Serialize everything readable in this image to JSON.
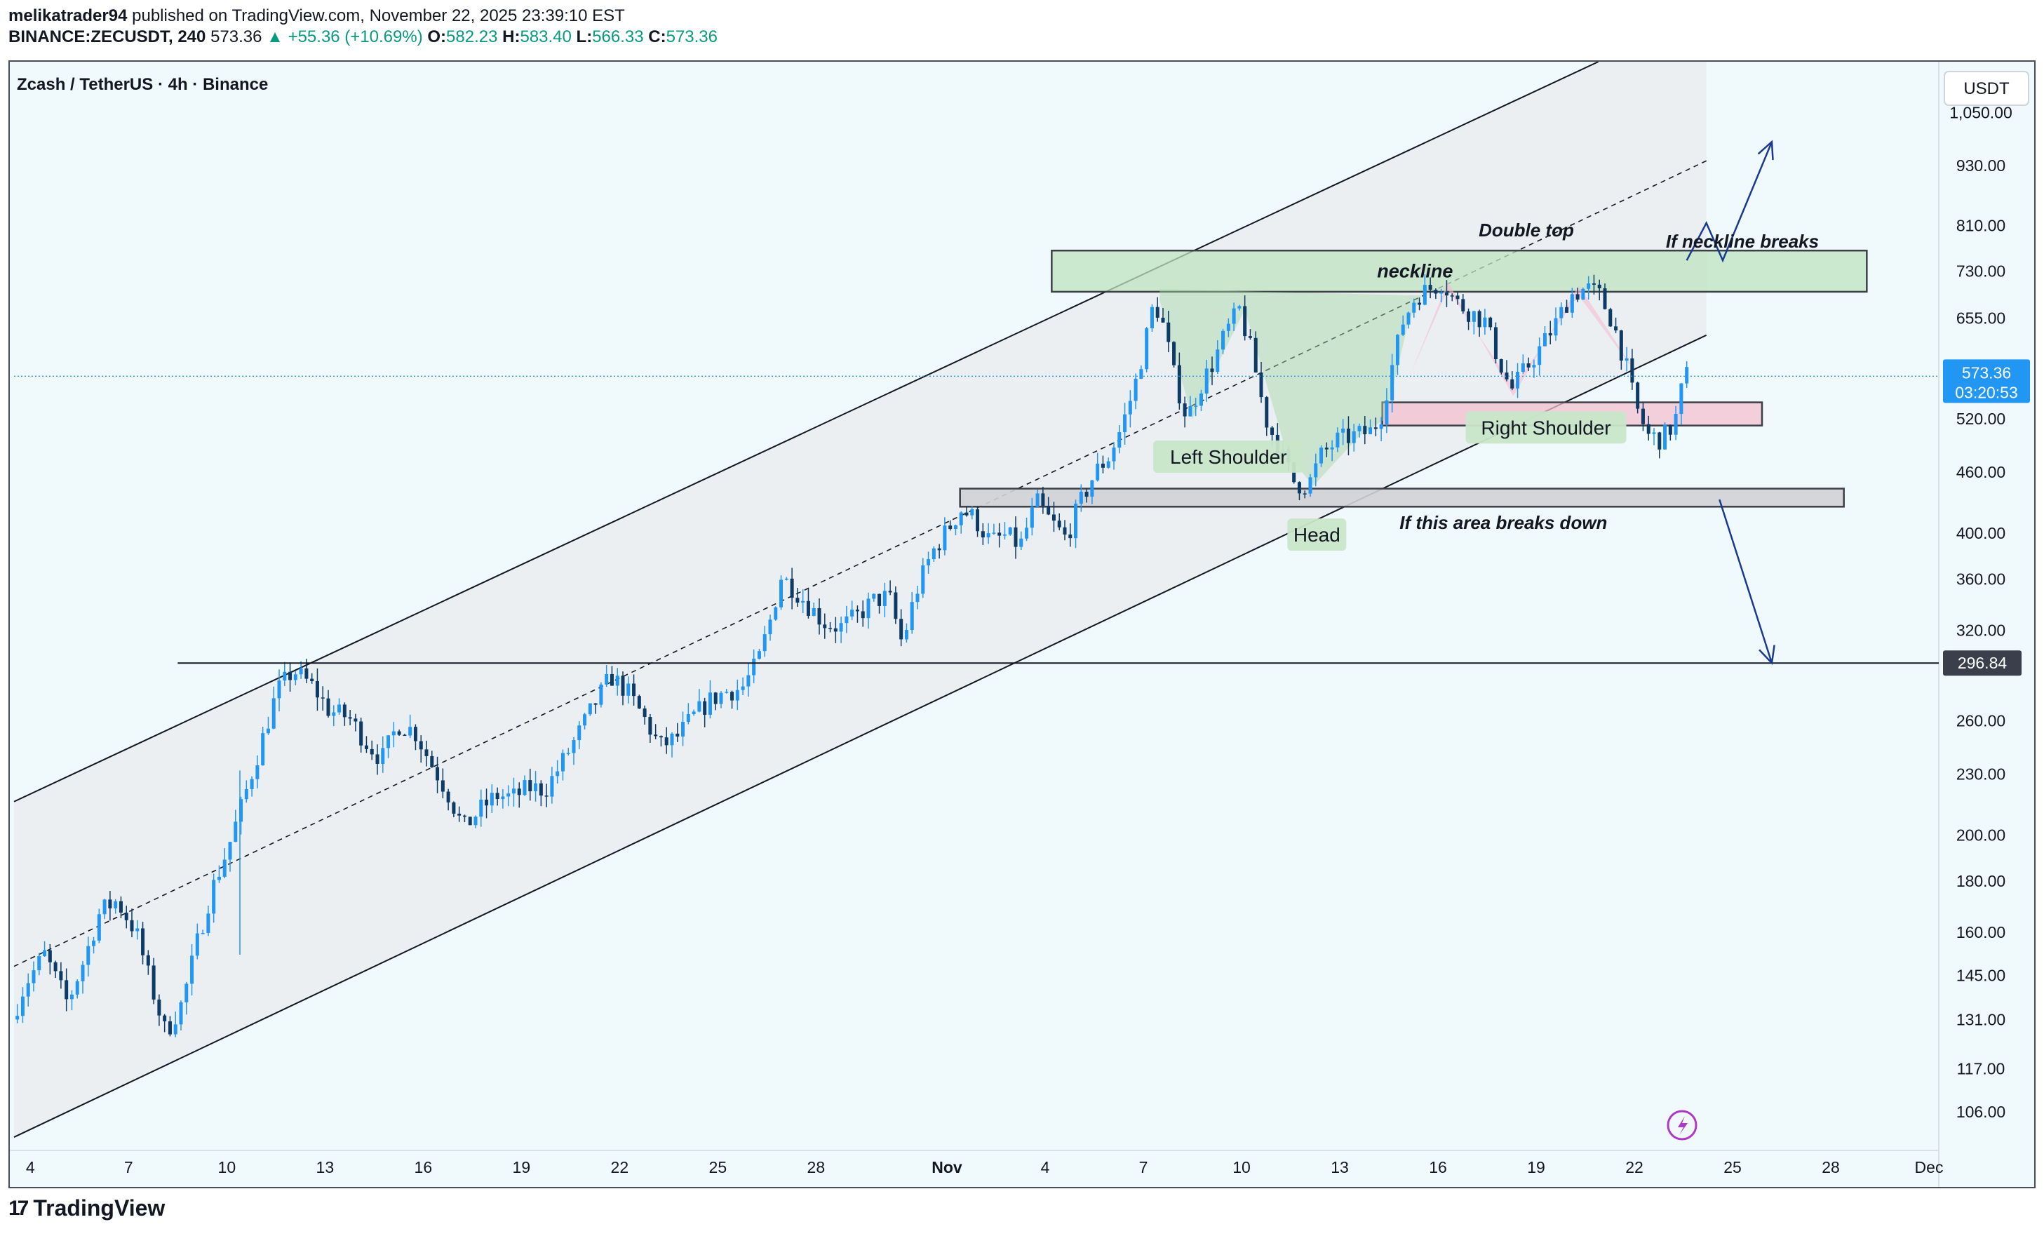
{
  "header": {
    "author": "melikatrader94",
    "published_text": "published on TradingView.com, November 22, 2025 23:39:10 EST",
    "symbol": "BINANCE:ZECUSDT, 240",
    "last": "573.36",
    "change": "▲ +55.36 (+10.69%)",
    "o_label": "O:",
    "o": "582.23",
    "h_label": "H:",
    "h": "583.40",
    "l_label": "L:",
    "l": "566.33",
    "c_label": "C:",
    "c": "573.36"
  },
  "chart_title": "Zcash / TetherUS · 4h · Binance",
  "currency_button": "USDT",
  "footer": {
    "brand": "TradingView",
    "mark": "17"
  },
  "colors": {
    "up": "#089981",
    "candle": "#2196f3",
    "candle_dark": "#0d3b66",
    "bg": "#f0f9fb",
    "green_zone": "#c8e6c9",
    "pink_zone": "#f8bbd0",
    "arrow": "#1a3a8f",
    "price_tag": "#2196f3",
    "level_tag": "#3a3f4b"
  },
  "chart_data": {
    "type": "candlestick",
    "title": "Zcash / TetherUS · 4h · Binance",
    "y_scale": "log",
    "ylim": [
      97,
      1180
    ],
    "y_ticks": [
      1050,
      930,
      810,
      730,
      655,
      520,
      460,
      400,
      360,
      320,
      260,
      230,
      200,
      180,
      160,
      145,
      131,
      117,
      106
    ],
    "y_tick_labels": [
      "1,050.00",
      "930.00",
      "810.00",
      "730.00",
      "655.00",
      "520.00",
      "460.00",
      "400.00",
      "360.00",
      "320.00",
      "260.00",
      "230.00",
      "200.00",
      "180.00",
      "160.00",
      "145.00",
      "131.00",
      "117.00",
      "106.00"
    ],
    "x_ticks": [
      {
        "day": 4,
        "label": "4"
      },
      {
        "day": 7,
        "label": "7"
      },
      {
        "day": 10,
        "label": "10"
      },
      {
        "day": 13,
        "label": "13"
      },
      {
        "day": 16,
        "label": "16"
      },
      {
        "day": 19,
        "label": "19"
      },
      {
        "day": 22,
        "label": "22"
      },
      {
        "day": 25,
        "label": "25"
      },
      {
        "day": 28,
        "label": "28"
      },
      {
        "day": 32,
        "label": "Nov",
        "bold": true
      },
      {
        "day": 35,
        "label": "4"
      },
      {
        "day": 38,
        "label": "7"
      },
      {
        "day": 41,
        "label": "10"
      },
      {
        "day": 44,
        "label": "13"
      },
      {
        "day": 47,
        "label": "16"
      },
      {
        "day": 50,
        "label": "19"
      },
      {
        "day": 53,
        "label": "22"
      },
      {
        "day": 56,
        "label": "25"
      },
      {
        "day": 59,
        "label": "28"
      },
      {
        "day": 62,
        "label": "Dec"
      }
    ],
    "x_range_days": [
      3.5,
      62.3
    ],
    "price_path": [
      [
        3.6,
        131
      ],
      [
        4.0,
        142
      ],
      [
        4.6,
        152
      ],
      [
        5.3,
        136
      ],
      [
        5.8,
        150
      ],
      [
        6.3,
        168
      ],
      [
        6.8,
        172
      ],
      [
        7.4,
        160
      ],
      [
        7.9,
        140
      ],
      [
        8.3,
        127
      ],
      [
        8.8,
        136
      ],
      [
        9.3,
        158
      ],
      [
        9.7,
        176
      ],
      [
        10.2,
        194
      ],
      [
        10.7,
        218
      ],
      [
        11.2,
        246
      ],
      [
        11.7,
        278
      ],
      [
        12.2,
        292
      ],
      [
        12.8,
        281
      ],
      [
        13.3,
        266
      ],
      [
        13.9,
        262
      ],
      [
        14.4,
        248
      ],
      [
        14.9,
        238
      ],
      [
        15.4,
        258
      ],
      [
        15.9,
        254
      ],
      [
        16.4,
        236
      ],
      [
        16.9,
        221
      ],
      [
        17.4,
        203
      ],
      [
        17.9,
        212
      ],
      [
        18.4,
        219
      ],
      [
        18.9,
        218
      ],
      [
        19.4,
        223
      ],
      [
        19.9,
        222
      ],
      [
        20.4,
        236
      ],
      [
        20.9,
        252
      ],
      [
        21.4,
        270
      ],
      [
        21.9,
        288
      ],
      [
        22.4,
        278
      ],
      [
        22.9,
        262
      ],
      [
        23.4,
        245
      ],
      [
        23.9,
        250
      ],
      [
        24.4,
        262
      ],
      [
        24.9,
        272
      ],
      [
        25.4,
        278
      ],
      [
        25.9,
        280
      ],
      [
        26.4,
        298
      ],
      [
        26.8,
        330
      ],
      [
        27.1,
        362
      ],
      [
        27.5,
        352
      ],
      [
        27.9,
        340
      ],
      [
        28.4,
        326
      ],
      [
        28.9,
        322
      ],
      [
        29.4,
        330
      ],
      [
        29.9,
        342
      ],
      [
        30.4,
        346
      ],
      [
        30.8,
        310
      ],
      [
        31.2,
        348
      ],
      [
        31.7,
        382
      ],
      [
        32.2,
        404
      ],
      [
        32.6,
        422
      ],
      [
        33.0,
        414
      ],
      [
        33.5,
        392
      ],
      [
        34.0,
        398
      ],
      [
        34.4,
        388
      ],
      [
        34.9,
        430
      ],
      [
        35.3,
        412
      ],
      [
        35.8,
        395
      ],
      [
        36.2,
        426
      ],
      [
        36.7,
        460
      ],
      [
        37.1,
        476
      ],
      [
        37.5,
        510
      ],
      [
        37.9,
        560
      ],
      [
        38.2,
        615
      ],
      [
        38.5,
        682
      ],
      [
        38.8,
        640
      ],
      [
        39.1,
        575
      ],
      [
        39.5,
        520
      ],
      [
        39.9,
        560
      ],
      [
        40.3,
        592
      ],
      [
        40.7,
        635
      ],
      [
        41.1,
        668
      ],
      [
        41.5,
        600
      ],
      [
        41.9,
        520
      ],
      [
        42.4,
        478
      ],
      [
        42.8,
        448
      ],
      [
        43.2,
        446
      ],
      [
        43.6,
        478
      ],
      [
        44.1,
        495
      ],
      [
        44.6,
        500
      ],
      [
        45.1,
        505
      ],
      [
        45.4,
        520
      ],
      [
        45.7,
        575
      ],
      [
        46.1,
        650
      ],
      [
        46.5,
        690
      ],
      [
        46.9,
        700
      ],
      [
        47.3,
        712
      ],
      [
        47.7,
        680
      ],
      [
        48.1,
        666
      ],
      [
        48.6,
        650
      ],
      [
        49.0,
        598
      ],
      [
        49.4,
        555
      ],
      [
        49.8,
        580
      ],
      [
        50.3,
        612
      ],
      [
        50.8,
        650
      ],
      [
        51.2,
        690
      ],
      [
        51.7,
        702
      ],
      [
        52.1,
        690
      ],
      [
        52.5,
        650
      ],
      [
        52.9,
        590
      ],
      [
        53.2,
        535
      ],
      [
        53.6,
        500
      ],
      [
        54.0,
        496
      ],
      [
        54.4,
        515
      ],
      [
        54.7,
        575
      ]
    ],
    "horizontal_level": {
      "value": 296.84,
      "label": "296.84",
      "from_day": 8.5
    },
    "current_price": {
      "value": 573.36,
      "label": "573.36",
      "countdown": "03:20:53"
    },
    "channel": {
      "upper": [
        [
          3.5,
          216
        ],
        [
          51.9,
          1180
        ]
      ],
      "lower": [
        [
          3.5,
          100
        ],
        [
          55.2,
          630
        ]
      ],
      "mid": [
        [
          3.5,
          148
        ],
        [
          55.2,
          940
        ]
      ]
    },
    "zones": [
      {
        "name": "neckline",
        "label": "neckline",
        "from_day": 35.2,
        "to_day": 60.1,
        "low": 696,
        "high": 765,
        "color": "green"
      },
      {
        "name": "right-shoulder-zone",
        "label": "",
        "from_day": 45.3,
        "to_day": 56.9,
        "low": 512,
        "high": 540,
        "color": "pink"
      },
      {
        "name": "breakdown-zone",
        "label": "",
        "from_day": 32.4,
        "to_day": 59.4,
        "low": 425,
        "high": 443,
        "color": "gray"
      }
    ],
    "annotations": [
      {
        "text": "Double top",
        "style": "bold-italic",
        "day": 49.7,
        "value": 790
      },
      {
        "text": "If neckline breaks",
        "style": "bold-italic",
        "day": 56.3,
        "value": 770
      },
      {
        "text": "If this area breaks down",
        "style": "bold-italic",
        "day": 49.0,
        "value": 404
      },
      {
        "text": "Left Shoulder",
        "style": "label",
        "day": 40.6,
        "value": 476
      },
      {
        "text": "Head",
        "style": "label",
        "day": 43.3,
        "value": 398
      },
      {
        "text": "Right Shoulder",
        "style": "label",
        "day": 50.3,
        "value": 509
      }
    ],
    "projection_up": [
      [
        54.6,
        748
      ],
      [
        55.2,
        815
      ],
      [
        55.7,
        748
      ],
      [
        57.2,
        982
      ]
    ],
    "projection_down": [
      [
        55.6,
        432
      ],
      [
        57.2,
        296.84
      ]
    ]
  }
}
